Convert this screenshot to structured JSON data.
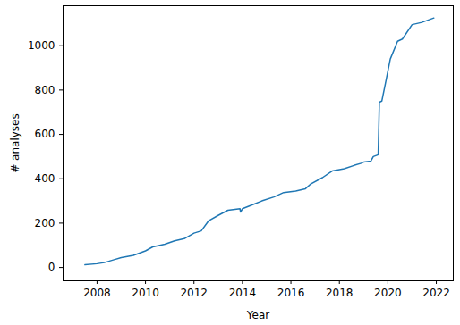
{
  "chart_data": {
    "type": "line",
    "x_label": "Year",
    "y_label": "# analyses",
    "x": [
      2007.5,
      2008.0,
      2008.3,
      2008.7,
      2009.0,
      2009.5,
      2010.0,
      2010.3,
      2010.8,
      2011.2,
      2011.6,
      2012.0,
      2012.3,
      2012.6,
      2013.0,
      2013.4,
      2013.9,
      2013.92,
      2014.0,
      2014.4,
      2014.8,
      2015.3,
      2015.7,
      2016.2,
      2016.6,
      2016.8,
      2017.3,
      2017.7,
      2018.2,
      2018.6,
      2018.9,
      2019.0,
      2019.3,
      2019.4,
      2019.6,
      2019.65,
      2019.75,
      2019.9,
      2020.1,
      2020.4,
      2020.6,
      2021.0,
      2021.4,
      2021.9
    ],
    "values": [
      12,
      17,
      22,
      35,
      45,
      55,
      75,
      93,
      105,
      120,
      130,
      155,
      165,
      210,
      235,
      258,
      265,
      250,
      265,
      282,
      300,
      318,
      338,
      345,
      355,
      375,
      405,
      435,
      445,
      460,
      470,
      475,
      480,
      500,
      508,
      745,
      750,
      830,
      940,
      1020,
      1030,
      1095,
      1105,
      1125
    ],
    "color": "#1f77b4",
    "xlim": [
      2006.6,
      2022.7
    ],
    "xticks": [
      2008,
      2010,
      2012,
      2014,
      2016,
      2018,
      2020,
      2022
    ],
    "ylim": [
      -60,
      1180
    ],
    "yticks": [
      0,
      200,
      400,
      600,
      800,
      1000
    ],
    "grid": false
  }
}
